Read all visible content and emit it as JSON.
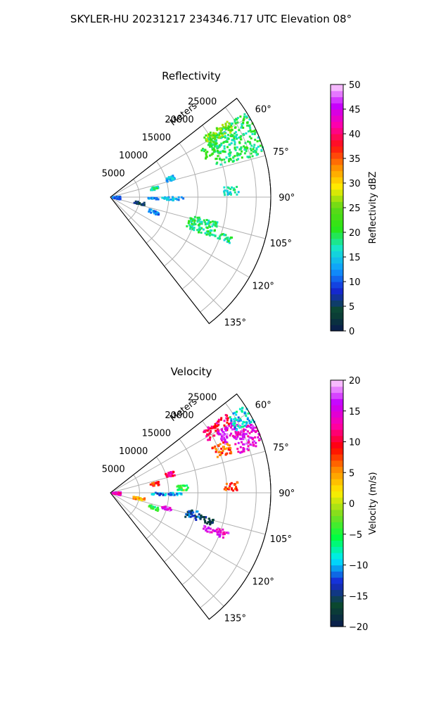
{
  "figure": {
    "title": "SKYLER-HU  20231217  234346.717 UTC Elevation 08°"
  },
  "chart_data": [
    {
      "type": "heatmap",
      "projection": "polar-sector",
      "title": "Reflectivity",
      "radial_label": "Meters",
      "radial_ticks": [
        "5000",
        "10000",
        "15000",
        "20000",
        "25000"
      ],
      "radial_max": 27500,
      "azimuth_ticks": [
        "60°",
        "75°",
        "90°",
        "105°",
        "120°",
        "135°"
      ],
      "azimuth_range": [
        52,
        142
      ],
      "grid": true,
      "colorbar": {
        "label": "Reflectivity dBZ",
        "ticks": [
          "0",
          "5",
          "10",
          "15",
          "20",
          "25",
          "30",
          "35",
          "40",
          "45",
          "50"
        ],
        "range": [
          0,
          50
        ],
        "stops": [
          "#0a1a4f",
          "#0b4a2e",
          "#1626d6",
          "#0f9bff",
          "#16e6d0",
          "#28e614",
          "#5ed817",
          "#ffee00",
          "#ff8c00",
          "#ff1010",
          "#ff00aa",
          "#c400ff",
          "#ffd8ff"
        ]
      },
      "echoes": [
        {
          "az": [
            58,
            74
          ],
          "r": [
            19000,
            27500
          ],
          "value": 19
        },
        {
          "az": [
            57,
            62
          ],
          "r": [
            19000,
            24000
          ],
          "value": 25
        },
        {
          "az": [
            62,
            68
          ],
          "r": [
            17500,
            20500
          ],
          "value": 20
        },
        {
          "az": [
            71,
            75
          ],
          "r": [
            10000,
            11500
          ],
          "value": 14
        },
        {
          "az": [
            77,
            81
          ],
          "r": [
            7000,
            8500
          ],
          "value": 18
        },
        {
          "az": [
            85,
            89
          ],
          "r": [
            19500,
            22000
          ],
          "value": 17
        },
        {
          "az": [
            90,
            93
          ],
          "r": [
            6500,
            12500
          ],
          "value": 13
        },
        {
          "az": [
            103,
            112
          ],
          "r": [
            14000,
            19000
          ],
          "value": 19
        },
        {
          "az": [
            108,
            111
          ],
          "r": [
            19000,
            22000
          ],
          "value": 18
        },
        {
          "az": [
            86,
            105
          ],
          "r": [
            400,
            1800
          ],
          "value": 10
        },
        {
          "az": [
            99,
            104
          ],
          "r": [
            4000,
            6000
          ],
          "value": 6
        },
        {
          "az": [
            107,
            111
          ],
          "r": [
            7000,
            8800
          ],
          "value": 12
        }
      ]
    },
    {
      "type": "heatmap",
      "projection": "polar-sector",
      "title": "Velocity",
      "radial_label": "Meters",
      "radial_ticks": [
        "5000",
        "10000",
        "15000",
        "20000",
        "25000"
      ],
      "radial_max": 27500,
      "azimuth_ticks": [
        "60°",
        "75°",
        "90°",
        "105°",
        "120°",
        "135°"
      ],
      "azimuth_range": [
        52,
        142
      ],
      "grid": true,
      "colorbar": {
        "label": "Velocity (m/s)",
        "ticks": [
          "−20",
          "−15",
          "−10",
          "−5",
          "0",
          "5",
          "10",
          "15",
          "20"
        ],
        "range": [
          -20,
          20
        ],
        "stops": [
          "#0a1a4f",
          "#0b4a2e",
          "#1626d6",
          "#00eaff",
          "#00ff40",
          "#7ddc1f",
          "#ffee00",
          "#ff8c00",
          "#ff0000",
          "#ff00aa",
          "#c400ff",
          "#ffd8ff"
        ]
      },
      "echoes": [
        {
          "az": [
            56,
            62
          ],
          "r": [
            19000,
            24000
          ],
          "value": 11
        },
        {
          "az": [
            60,
            67
          ],
          "r": [
            21000,
            25500
          ],
          "value": 16
        },
        {
          "az": [
            57,
            64
          ],
          "r": [
            24000,
            27500
          ],
          "value": -9
        },
        {
          "az": [
            64,
            73
          ],
          "r": [
            23000,
            27500
          ],
          "value": 15
        },
        {
          "az": [
            66,
            72
          ],
          "r": [
            19000,
            22000
          ],
          "value": 7
        },
        {
          "az": [
            71,
            75
          ],
          "r": [
            10000,
            11500
          ],
          "value": 11
        },
        {
          "az": [
            77,
            81
          ],
          "r": [
            7000,
            8500
          ],
          "value": 9
        },
        {
          "az": [
            84,
            88
          ],
          "r": [
            11500,
            13500
          ],
          "value": -4
        },
        {
          "az": [
            85,
            89
          ],
          "r": [
            19500,
            22000
          ],
          "value": 8
        },
        {
          "az": [
            90,
            93
          ],
          "r": [
            6500,
            12500
          ],
          "value": -11
        },
        {
          "az": [
            102,
            108
          ],
          "r": [
            13500,
            16000
          ],
          "value": -13
        },
        {
          "az": [
            104,
            108
          ],
          "r": [
            16000,
            18500
          ],
          "value": -16
        },
        {
          "az": [
            108,
            112
          ],
          "r": [
            17000,
            21500
          ],
          "value": 15
        },
        {
          "az": [
            104,
            107
          ],
          "r": [
            9000,
            11000
          ],
          "value": 16
        },
        {
          "az": [
            86,
            104
          ],
          "r": [
            400,
            1800
          ],
          "value": 14
        },
        {
          "az": [
            99,
            104
          ],
          "r": [
            4000,
            6000
          ],
          "value": 4
        },
        {
          "az": [
            107,
            111
          ],
          "r": [
            7000,
            8800
          ],
          "value": -5
        }
      ]
    }
  ]
}
